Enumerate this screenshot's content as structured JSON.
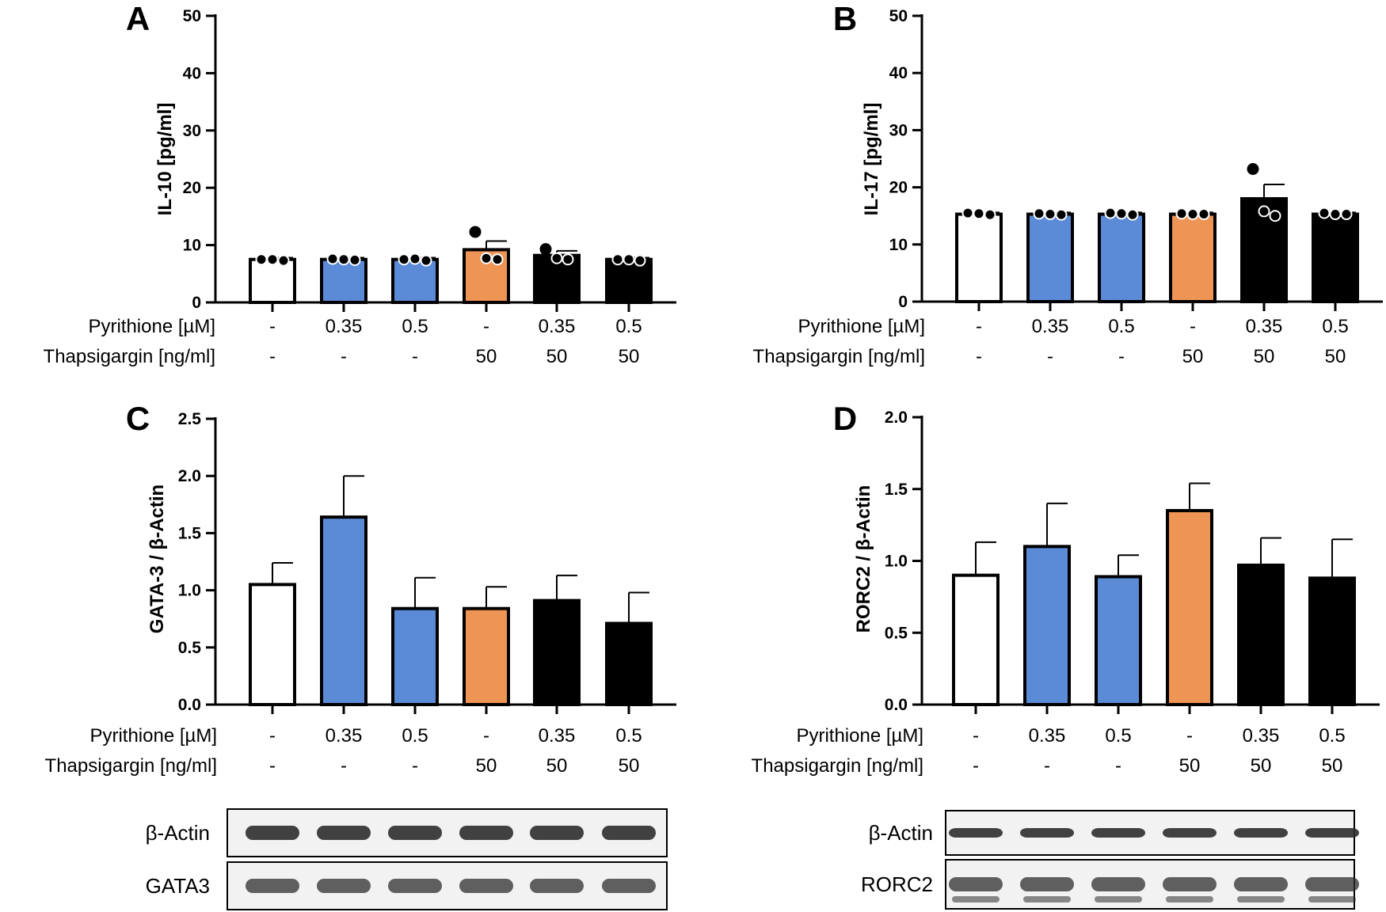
{
  "colors": {
    "white": "#ffffff",
    "blue": "#5b8bd7",
    "orange": "#ee9455",
    "black": "#000000",
    "blot_band": "#2e2e2e"
  },
  "condition_rows": {
    "pyrithione_label": "Pyrithione [µM]",
    "thapsigargin_label": "Thapsigargin [ng/ml]",
    "pyrithione_values": [
      "-",
      "0.35",
      "0.5",
      "-",
      "0.35",
      "0.5"
    ],
    "thapsigargin_values": [
      "-",
      "-",
      "-",
      "50",
      "50",
      "50"
    ],
    "bar_fills": [
      "white",
      "blue",
      "blue",
      "orange",
      "black",
      "black"
    ]
  },
  "chart_data": [
    {
      "panel": "A",
      "type": "bar",
      "ylabel": "IL-10 [pg/ml]",
      "ylim": [
        0,
        50
      ],
      "yticks": [
        "0",
        "10",
        "20",
        "30",
        "40",
        "50"
      ],
      "values": [
        7.5,
        7.5,
        7.5,
        9.2,
        8.2,
        7.5
      ],
      "errors": [
        0.3,
        0.3,
        0.3,
        1.5,
        0.8,
        0.3
      ],
      "points": [
        [
          7.5,
          7.5,
          7.3
        ],
        [
          7.6,
          7.5,
          7.4
        ],
        [
          7.5,
          7.6,
          7.3
        ],
        [
          12.3,
          7.7,
          7.5
        ],
        [
          9.3,
          7.7,
          7.5
        ],
        [
          7.5,
          7.5,
          7.3
        ]
      ]
    },
    {
      "panel": "B",
      "type": "bar",
      "ylabel": "IL-17 [pg/ml]",
      "ylim": [
        0,
        50
      ],
      "yticks": [
        "0",
        "10",
        "20",
        "30",
        "40",
        "50"
      ],
      "values": [
        15.3,
        15.3,
        15.3,
        15.3,
        18.0,
        15.3
      ],
      "errors": [
        0.3,
        0.3,
        0.3,
        0.3,
        2.5,
        0.3
      ],
      "points": [
        [
          15.5,
          15.4,
          15.2
        ],
        [
          15.4,
          15.3,
          15.2
        ],
        [
          15.5,
          15.4,
          15.2
        ],
        [
          15.4,
          15.3,
          15.3
        ],
        [
          23.2,
          15.8,
          15.0
        ],
        [
          15.5,
          15.3,
          15.3
        ]
      ]
    },
    {
      "panel": "C",
      "type": "bar",
      "ylabel": "GATA-3 / β-Actin",
      "ylim": [
        0,
        2.5
      ],
      "yticks": [
        "0.0",
        "0.5",
        "1.0",
        "1.5",
        "2.0",
        "2.5"
      ],
      "values": [
        1.05,
        1.64,
        0.84,
        0.84,
        0.91,
        0.71
      ],
      "errors": [
        0.19,
        0.36,
        0.27,
        0.19,
        0.22,
        0.27
      ]
    },
    {
      "panel": "D",
      "type": "bar",
      "ylabel": "RORC2 / β-Actin",
      "ylim": [
        0,
        2.0
      ],
      "yticks": [
        "0.0",
        "0.5",
        "1.0",
        "1.5",
        "2.0"
      ],
      "values": [
        0.9,
        1.1,
        0.89,
        1.35,
        0.97,
        0.88
      ],
      "errors": [
        0.23,
        0.3,
        0.15,
        0.19,
        0.19,
        0.27
      ]
    }
  ],
  "blots": [
    {
      "panel": "C",
      "labels": [
        "β-Actin",
        "GATA3"
      ]
    },
    {
      "panel": "D",
      "labels": [
        "β-Actin",
        "RORC2"
      ]
    }
  ]
}
